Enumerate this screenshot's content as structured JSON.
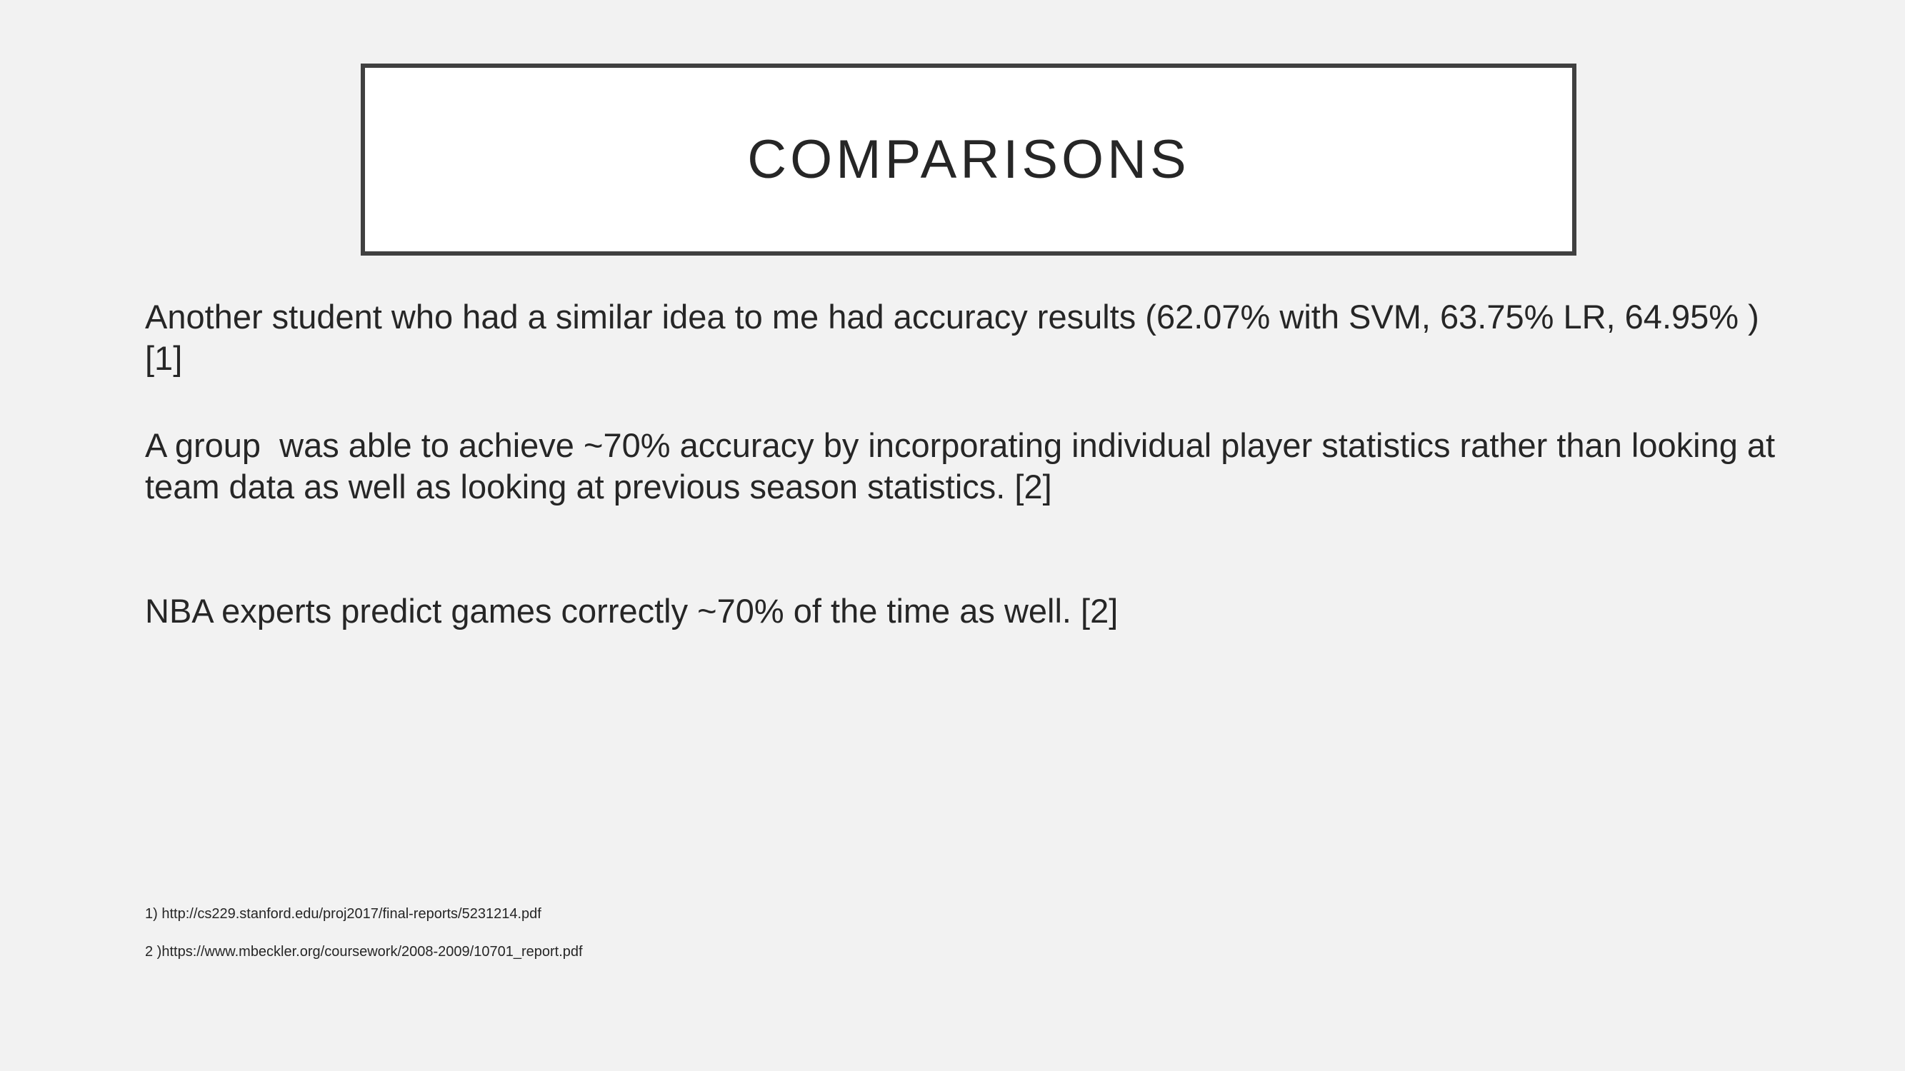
{
  "slide": {
    "title": "COMPARISONS",
    "paragraphs": [
      "Another student who had a similar idea to me had accuracy results (62.07% with SVM, 63.75% LR, 64.95% ) [1]",
      "A group  was able to achieve ~70% accuracy by incorporating individual player statistics rather than looking at team data as well as looking at previous season statistics. [2]",
      "NBA experts predict games correctly ~70% of the time as well. [2]"
    ],
    "references": [
      "1) http://cs229.stanford.edu/proj2017/final-reports/5231214.pdf",
      "2 )https://www.mbeckler.org/coursework/2008-2009/10701_report.pdf"
    ]
  }
}
